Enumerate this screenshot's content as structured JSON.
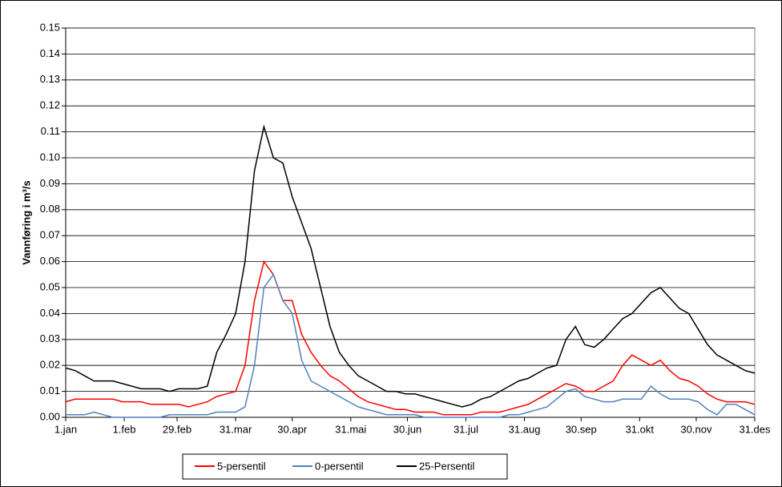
{
  "chart_data": {
    "type": "line",
    "y_label": "Vannføring i m³/s",
    "x": [
      0,
      5,
      10,
      15,
      20,
      25,
      30,
      35,
      40,
      45,
      50,
      55,
      60,
      65,
      70,
      75,
      80,
      85,
      90,
      95,
      100,
      105,
      110,
      115,
      120,
      125,
      130,
      135,
      140,
      145,
      150,
      155,
      160,
      165,
      170,
      175,
      180,
      185,
      190,
      195,
      200,
      205,
      210,
      215,
      220,
      225,
      230,
      235,
      240,
      245,
      250,
      255,
      260,
      265,
      270,
      275,
      280,
      285,
      290,
      295,
      300,
      305,
      310,
      315,
      320,
      325,
      330,
      335,
      340,
      345,
      350,
      355,
      360,
      365
    ],
    "xlim": [
      0,
      365
    ],
    "xticks": [
      {
        "value": 0,
        "label": "1.jan"
      },
      {
        "value": 31,
        "label": "1.feb"
      },
      {
        "value": 59,
        "label": "29.feb"
      },
      {
        "value": 90,
        "label": "31.mar"
      },
      {
        "value": 120,
        "label": "30.apr"
      },
      {
        "value": 151,
        "label": "31.mai"
      },
      {
        "value": 181,
        "label": "30.jun"
      },
      {
        "value": 212,
        "label": "31.jul"
      },
      {
        "value": 243,
        "label": "31.aug"
      },
      {
        "value": 273,
        "label": "30.sep"
      },
      {
        "value": 304,
        "label": "31.okt"
      },
      {
        "value": 334,
        "label": "30.nov"
      },
      {
        "value": 365,
        "label": "31.des"
      }
    ],
    "ylim": [
      0,
      0.15
    ],
    "yticks": [
      {
        "value": 0,
        "label": "0.00"
      },
      0.01,
      0.02,
      0.03,
      0.04,
      0.05,
      0.06,
      0.07,
      0.08,
      0.09,
      {
        "value": 0.1,
        "label": "0.10"
      },
      0.11,
      0.12,
      0.13,
      0.14,
      0.15
    ],
    "grid": true,
    "legend": "bottom",
    "series": [
      {
        "name": "5-persentil",
        "color": "#ff0000",
        "values": [
          0.006,
          0.007,
          0.007,
          0.007,
          0.007,
          0.007,
          0.006,
          0.006,
          0.006,
          0.005,
          0.005,
          0.005,
          0.005,
          0.004,
          0.005,
          0.006,
          0.008,
          0.009,
          0.01,
          0.02,
          0.045,
          0.06,
          0.055,
          0.045,
          0.045,
          0.032,
          0.025,
          0.02,
          0.016,
          0.014,
          0.011,
          0.008,
          0.006,
          0.005,
          0.004,
          0.003,
          0.003,
          0.002,
          0.002,
          0.002,
          0.001,
          0.001,
          0.001,
          0.001,
          0.002,
          0.002,
          0.002,
          0.003,
          0.004,
          0.005,
          0.007,
          0.009,
          0.011,
          0.013,
          0.012,
          0.01,
          0.01,
          0.012,
          0.014,
          0.02,
          0.024,
          0.022,
          0.02,
          0.022,
          0.018,
          0.015,
          0.014,
          0.012,
          0.009,
          0.007,
          0.006,
          0.006,
          0.006,
          0.005
        ]
      },
      {
        "name": "0-persentil",
        "color": "#4f81bd",
        "values": [
          0.001,
          0.001,
          0.001,
          0.002,
          0.001,
          0,
          0,
          0,
          0,
          0,
          0,
          0.001,
          0.001,
          0.001,
          0.001,
          0.001,
          0.002,
          0.002,
          0.002,
          0.004,
          0.02,
          0.05,
          0.055,
          0.045,
          0.04,
          0.022,
          0.014,
          0.012,
          0.01,
          0.008,
          0.006,
          0.004,
          0.003,
          0.002,
          0.001,
          0.001,
          0.001,
          0.001,
          0,
          0,
          0,
          0,
          0,
          0,
          0,
          0,
          0,
          0.001,
          0.001,
          0.002,
          0.003,
          0.004,
          0.007,
          0.01,
          0.011,
          0.008,
          0.007,
          0.006,
          0.006,
          0.007,
          0.007,
          0.007,
          0.012,
          0.009,
          0.007,
          0.007,
          0.007,
          0.006,
          0.003,
          0.001,
          0.005,
          0.005,
          0.003,
          0.001
        ]
      },
      {
        "name": "25-Persentil",
        "color": "#000000",
        "values": [
          0.019,
          0.018,
          0.016,
          0.014,
          0.014,
          0.014,
          0.013,
          0.012,
          0.011,
          0.011,
          0.011,
          0.01,
          0.011,
          0.011,
          0.011,
          0.012,
          0.025,
          0.032,
          0.04,
          0.06,
          0.095,
          0.112,
          0.1,
          0.098,
          0.085,
          0.075,
          0.065,
          0.05,
          0.035,
          0.025,
          0.02,
          0.016,
          0.014,
          0.012,
          0.01,
          0.01,
          0.009,
          0.009,
          0.008,
          0.007,
          0.006,
          0.005,
          0.004,
          0.005,
          0.007,
          0.008,
          0.01,
          0.012,
          0.014,
          0.015,
          0.017,
          0.019,
          0.02,
          0.03,
          0.035,
          0.028,
          0.027,
          0.03,
          0.034,
          0.038,
          0.04,
          0.044,
          0.048,
          0.05,
          0.046,
          0.042,
          0.04,
          0.034,
          0.028,
          0.024,
          0.022,
          0.02,
          0.018,
          0.017
        ]
      }
    ]
  }
}
